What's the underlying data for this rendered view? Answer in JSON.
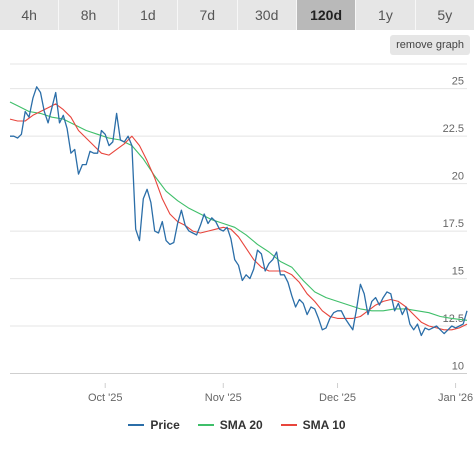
{
  "timeframes": [
    "4h",
    "8h",
    "1d",
    "7d",
    "30d",
    "120d",
    "1y",
    "5y"
  ],
  "active_timeframe": "120d",
  "remove_graph_label": "remove graph",
  "legend": [
    "Price",
    "SMA 20",
    "SMA 10"
  ],
  "colors": {
    "price": "#2b6ea8",
    "sma20": "#3fbf6a",
    "sma10": "#e8453c",
    "grid": "#e4e4e4",
    "axis_text": "#666666",
    "tab_bg": "#e6e6e6",
    "tab_active_bg": "#b9b9b9"
  },
  "chart_data": {
    "type": "line",
    "x_range": [
      "2025-09-06",
      "2026-01-04"
    ],
    "x_ticks": [
      {
        "date": "2025-10-01",
        "label": "Oct '25"
      },
      {
        "date": "2025-11-01",
        "label": "Nov '25"
      },
      {
        "date": "2025-12-01",
        "label": "Dec '25"
      },
      {
        "date": "2026-01-01",
        "label": "Jan '26"
      }
    ],
    "ylim": [
      9.5,
      26.3
    ],
    "y_ticks": [
      10,
      12.5,
      15,
      17.5,
      20,
      22.5,
      25
    ],
    "y_tick_labels": [
      "10",
      "12.5",
      "15",
      "17.5",
      "20",
      "22.5",
      "25"
    ],
    "series": [
      {
        "name": "Price",
        "points": [
          [
            "2025-09-06",
            22.5
          ],
          [
            "2025-09-07",
            22.5
          ],
          [
            "2025-09-08",
            22.4
          ],
          [
            "2025-09-09",
            22.6
          ],
          [
            "2025-09-10",
            23.8
          ],
          [
            "2025-09-11",
            23.5
          ],
          [
            "2025-09-12",
            24.5
          ],
          [
            "2025-09-13",
            25.1
          ],
          [
            "2025-09-14",
            24.8
          ],
          [
            "2025-09-15",
            23.8
          ],
          [
            "2025-09-16",
            23.2
          ],
          [
            "2025-09-17",
            24.0
          ],
          [
            "2025-09-18",
            24.8
          ],
          [
            "2025-09-19",
            23.2
          ],
          [
            "2025-09-20",
            23.6
          ],
          [
            "2025-09-21",
            22.9
          ],
          [
            "2025-09-22",
            21.6
          ],
          [
            "2025-09-23",
            21.8
          ],
          [
            "2025-09-24",
            20.5
          ],
          [
            "2025-09-25",
            21.0
          ],
          [
            "2025-09-26",
            21.0
          ],
          [
            "2025-09-27",
            21.7
          ],
          [
            "2025-09-28",
            21.6
          ],
          [
            "2025-09-29",
            21.6
          ],
          [
            "2025-09-30",
            22.8
          ],
          [
            "2025-10-01",
            22.6
          ],
          [
            "2025-10-02",
            22.0
          ],
          [
            "2025-10-03",
            22.2
          ],
          [
            "2025-10-04",
            23.7
          ],
          [
            "2025-10-05",
            22.3
          ],
          [
            "2025-10-06",
            22.2
          ],
          [
            "2025-10-07",
            22.5
          ],
          [
            "2025-10-08",
            22.0
          ],
          [
            "2025-10-09",
            17.6
          ],
          [
            "2025-10-10",
            17.0
          ],
          [
            "2025-10-11",
            19.2
          ],
          [
            "2025-10-12",
            19.7
          ],
          [
            "2025-10-13",
            19.0
          ],
          [
            "2025-10-14",
            17.5
          ],
          [
            "2025-10-15",
            17.4
          ],
          [
            "2025-10-16",
            18.0
          ],
          [
            "2025-10-17",
            17.0
          ],
          [
            "2025-10-18",
            16.8
          ],
          [
            "2025-10-19",
            16.9
          ],
          [
            "2025-10-20",
            17.9
          ],
          [
            "2025-10-21",
            18.6
          ],
          [
            "2025-10-22",
            17.8
          ],
          [
            "2025-10-23",
            17.5
          ],
          [
            "2025-10-24",
            17.4
          ],
          [
            "2025-10-25",
            17.3
          ],
          [
            "2025-10-26",
            17.8
          ],
          [
            "2025-10-27",
            18.4
          ],
          [
            "2025-10-28",
            17.9
          ],
          [
            "2025-10-29",
            18.2
          ],
          [
            "2025-10-30",
            18.0
          ],
          [
            "2025-10-31",
            17.6
          ],
          [
            "2025-11-01",
            17.5
          ],
          [
            "2025-11-02",
            17.7
          ],
          [
            "2025-11-03",
            17.1
          ],
          [
            "2025-11-04",
            16.0
          ],
          [
            "2025-11-05",
            15.7
          ],
          [
            "2025-11-06",
            14.9
          ],
          [
            "2025-11-07",
            15.2
          ],
          [
            "2025-11-08",
            15.0
          ],
          [
            "2025-11-09",
            15.5
          ],
          [
            "2025-11-10",
            16.5
          ],
          [
            "2025-11-11",
            16.3
          ],
          [
            "2025-11-12",
            15.4
          ],
          [
            "2025-11-13",
            15.8
          ],
          [
            "2025-11-14",
            16.0
          ],
          [
            "2025-11-15",
            16.4
          ],
          [
            "2025-11-16",
            15.2
          ],
          [
            "2025-11-17",
            15.2
          ],
          [
            "2025-11-18",
            14.8
          ],
          [
            "2025-11-19",
            14.1
          ],
          [
            "2025-11-20",
            13.5
          ],
          [
            "2025-11-21",
            13.9
          ],
          [
            "2025-11-22",
            13.7
          ],
          [
            "2025-11-23",
            13.1
          ],
          [
            "2025-11-24",
            13.5
          ],
          [
            "2025-11-25",
            13.4
          ],
          [
            "2025-11-26",
            12.9
          ],
          [
            "2025-11-27",
            12.3
          ],
          [
            "2025-11-28",
            12.4
          ],
          [
            "2025-11-29",
            12.9
          ],
          [
            "2025-11-30",
            13.2
          ],
          [
            "2025-12-01",
            13.3
          ],
          [
            "2025-12-02",
            13.3
          ],
          [
            "2025-12-03",
            12.9
          ],
          [
            "2025-12-04",
            12.6
          ],
          [
            "2025-12-05",
            12.3
          ],
          [
            "2025-12-06",
            13.4
          ],
          [
            "2025-12-07",
            14.7
          ],
          [
            "2025-12-08",
            14.2
          ],
          [
            "2025-12-09",
            13.1
          ],
          [
            "2025-12-10",
            13.8
          ],
          [
            "2025-12-11",
            14.0
          ],
          [
            "2025-12-12",
            13.6
          ],
          [
            "2025-12-13",
            14.0
          ],
          [
            "2025-12-14",
            14.3
          ],
          [
            "2025-12-15",
            14.2
          ],
          [
            "2025-12-16",
            13.3
          ],
          [
            "2025-12-17",
            13.7
          ],
          [
            "2025-12-18",
            13.1
          ],
          [
            "2025-12-19",
            13.5
          ],
          [
            "2025-12-20",
            12.6
          ],
          [
            "2025-12-21",
            12.3
          ],
          [
            "2025-12-22",
            12.6
          ],
          [
            "2025-12-23",
            12.0
          ],
          [
            "2025-12-24",
            12.4
          ],
          [
            "2025-12-25",
            12.3
          ],
          [
            "2025-12-26",
            12.4
          ],
          [
            "2025-12-27",
            12.5
          ],
          [
            "2025-12-28",
            12.3
          ],
          [
            "2025-12-29",
            12.1
          ],
          [
            "2025-12-30",
            12.3
          ],
          [
            "2025-12-31",
            12.5
          ],
          [
            "2026-01-01",
            12.4
          ],
          [
            "2026-01-02",
            12.5
          ],
          [
            "2026-01-03",
            12.6
          ],
          [
            "2026-01-04",
            13.3
          ]
        ]
      },
      {
        "name": "SMA 20",
        "points": [
          [
            "2025-09-06",
            24.3
          ],
          [
            "2025-09-08",
            24.1
          ],
          [
            "2025-09-11",
            23.8
          ],
          [
            "2025-09-14",
            23.7
          ],
          [
            "2025-09-17",
            23.5
          ],
          [
            "2025-09-20",
            23.4
          ],
          [
            "2025-09-23",
            23.1
          ],
          [
            "2025-09-26",
            22.8
          ],
          [
            "2025-09-29",
            22.6
          ],
          [
            "2025-10-02",
            22.4
          ],
          [
            "2025-10-05",
            22.3
          ],
          [
            "2025-10-08",
            22.0
          ],
          [
            "2025-10-11",
            21.3
          ],
          [
            "2025-10-14",
            20.4
          ],
          [
            "2025-10-17",
            19.6
          ],
          [
            "2025-10-20",
            19.1
          ],
          [
            "2025-10-23",
            18.7
          ],
          [
            "2025-10-26",
            18.4
          ],
          [
            "2025-10-29",
            18.1
          ],
          [
            "2025-11-01",
            17.9
          ],
          [
            "2025-11-04",
            17.7
          ],
          [
            "2025-11-07",
            17.3
          ],
          [
            "2025-11-10",
            16.8
          ],
          [
            "2025-11-13",
            16.4
          ],
          [
            "2025-11-16",
            15.9
          ],
          [
            "2025-11-19",
            15.6
          ],
          [
            "2025-11-22",
            14.9
          ],
          [
            "2025-11-25",
            14.3
          ],
          [
            "2025-11-28",
            14.0
          ],
          [
            "2025-12-01",
            13.8
          ],
          [
            "2025-12-04",
            13.6
          ],
          [
            "2025-12-07",
            13.4
          ],
          [
            "2025-12-10",
            13.3
          ],
          [
            "2025-12-13",
            13.3
          ],
          [
            "2025-12-16",
            13.4
          ],
          [
            "2025-12-19",
            13.4
          ],
          [
            "2025-12-22",
            13.3
          ],
          [
            "2025-12-25",
            13.2
          ],
          [
            "2025-12-28",
            13.0
          ],
          [
            "2025-12-31",
            12.9
          ],
          [
            "2026-01-04",
            12.8
          ]
        ]
      },
      {
        "name": "SMA 10",
        "points": [
          [
            "2025-09-06",
            23.4
          ],
          [
            "2025-09-08",
            23.3
          ],
          [
            "2025-09-10",
            23.3
          ],
          [
            "2025-09-12",
            23.6
          ],
          [
            "2025-09-14",
            23.8
          ],
          [
            "2025-09-16",
            24.0
          ],
          [
            "2025-09-18",
            24.2
          ],
          [
            "2025-09-20",
            23.9
          ],
          [
            "2025-09-22",
            23.5
          ],
          [
            "2025-09-24",
            22.8
          ],
          [
            "2025-09-26",
            22.4
          ],
          [
            "2025-09-28",
            22.0
          ],
          [
            "2025-09-30",
            21.6
          ],
          [
            "2025-10-02",
            21.5
          ],
          [
            "2025-10-04",
            21.8
          ],
          [
            "2025-10-06",
            22.1
          ],
          [
            "2025-10-08",
            22.5
          ],
          [
            "2025-10-10",
            22.0
          ],
          [
            "2025-10-12",
            21.2
          ],
          [
            "2025-10-14",
            20.3
          ],
          [
            "2025-10-16",
            19.2
          ],
          [
            "2025-10-18",
            18.4
          ],
          [
            "2025-10-20",
            18.0
          ],
          [
            "2025-10-22",
            17.8
          ],
          [
            "2025-10-24",
            17.5
          ],
          [
            "2025-10-26",
            17.4
          ],
          [
            "2025-10-28",
            17.5
          ],
          [
            "2025-10-30",
            17.6
          ],
          [
            "2025-11-01",
            17.7
          ],
          [
            "2025-11-03",
            17.6
          ],
          [
            "2025-11-05",
            17.2
          ],
          [
            "2025-11-07",
            16.6
          ],
          [
            "2025-11-09",
            16.0
          ],
          [
            "2025-11-11",
            15.6
          ],
          [
            "2025-11-13",
            15.4
          ],
          [
            "2025-11-15",
            15.4
          ],
          [
            "2025-11-17",
            15.4
          ],
          [
            "2025-11-19",
            15.2
          ],
          [
            "2025-11-21",
            14.8
          ],
          [
            "2025-11-23",
            14.2
          ],
          [
            "2025-11-25",
            13.8
          ],
          [
            "2025-11-27",
            13.3
          ],
          [
            "2025-11-29",
            13.0
          ],
          [
            "2025-12-01",
            12.9
          ],
          [
            "2025-12-03",
            12.9
          ],
          [
            "2025-12-05",
            12.9
          ],
          [
            "2025-12-07",
            13.0
          ],
          [
            "2025-12-09",
            13.3
          ],
          [
            "2025-12-11",
            13.6
          ],
          [
            "2025-12-13",
            13.8
          ],
          [
            "2025-12-15",
            13.9
          ],
          [
            "2025-12-17",
            13.8
          ],
          [
            "2025-12-19",
            13.5
          ],
          [
            "2025-12-21",
            13.1
          ],
          [
            "2025-12-23",
            12.7
          ],
          [
            "2025-12-25",
            12.5
          ],
          [
            "2025-12-27",
            12.4
          ],
          [
            "2025-12-29",
            12.3
          ],
          [
            "2025-12-31",
            12.3
          ],
          [
            "2026-01-02",
            12.4
          ],
          [
            "2026-01-04",
            12.6
          ]
        ]
      }
    ],
    "grid": true,
    "legend_position": "bottom"
  }
}
